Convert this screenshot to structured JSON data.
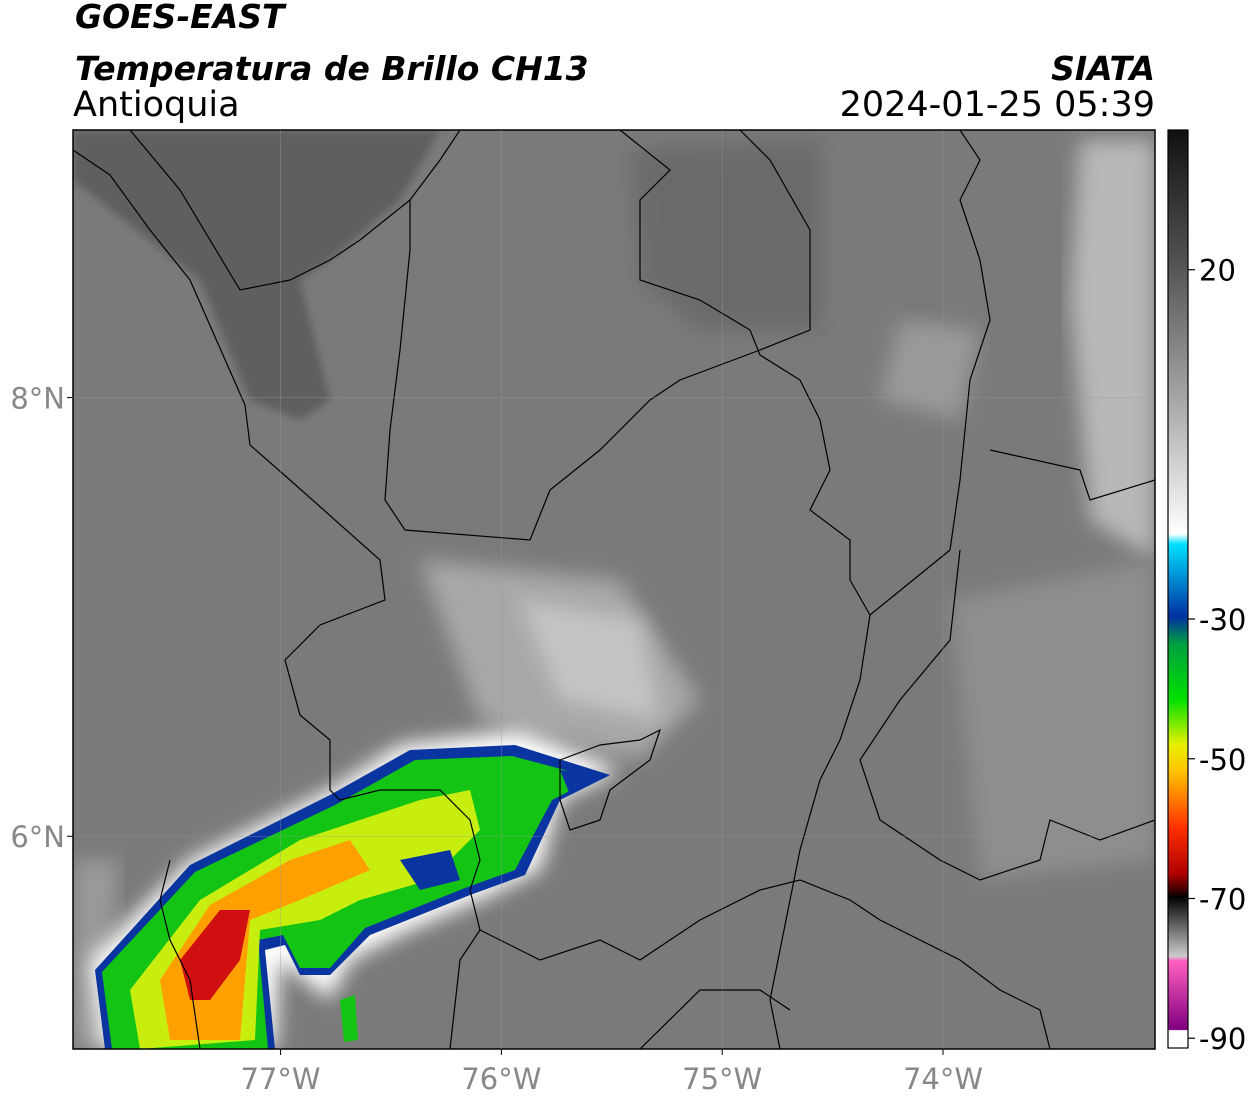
{
  "header": {
    "title": "GOES-EAST",
    "subtitle": "Temperatura de Brillo CH13",
    "region": "Antioquia",
    "source": "SIATA",
    "datetime": "2024-01-25 05:39"
  },
  "map": {
    "lonlim": [
      -77.94,
      -73.04
    ],
    "latlim": [
      5.03,
      9.22
    ],
    "lonticks": [
      {
        "value": -77,
        "label": "77°W"
      },
      {
        "value": -76,
        "label": "76°W"
      },
      {
        "value": -75,
        "label": "75°W"
      },
      {
        "value": -74,
        "label": "74°W"
      }
    ],
    "latticks": [
      {
        "value": 8,
        "label": "8°N"
      },
      {
        "value": 6,
        "label": "6°N"
      }
    ]
  },
  "colorbar": {
    "lim": [
      -91.4,
      40
    ],
    "ticks": [
      20,
      -30,
      -50,
      -70,
      -90
    ]
  }
}
